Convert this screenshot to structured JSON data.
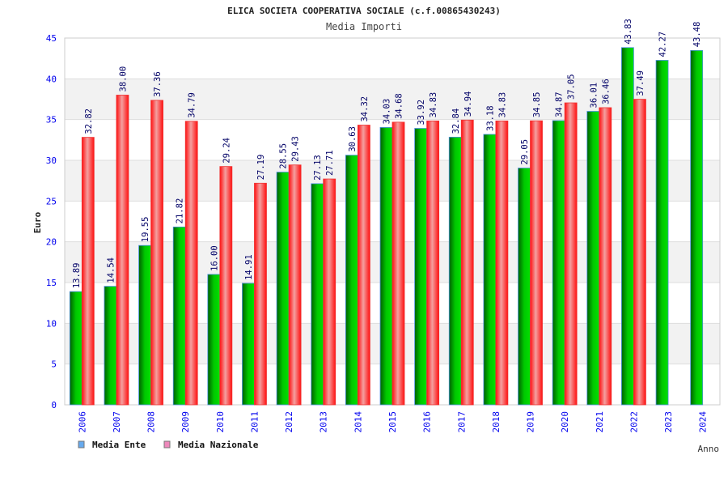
{
  "chart_data": {
    "type": "bar",
    "title": "ELICA SOCIETA COOPERATIVA SOCIALE (c.f.00865430243)",
    "subtitle": "Media Importi",
    "xlabel": "Anno",
    "ylabel": "Euro",
    "ylim": [
      0,
      45
    ],
    "yticks": [
      0,
      5,
      10,
      15,
      20,
      25,
      30,
      35,
      40,
      45
    ],
    "grid": true,
    "legend_position": "bottom-left",
    "categories": [
      "2006",
      "2007",
      "2008",
      "2009",
      "2010",
      "2011",
      "2012",
      "2013",
      "2014",
      "2015",
      "2016",
      "2017",
      "2018",
      "2019",
      "2020",
      "2021",
      "2022",
      "2023",
      "2024"
    ],
    "series": [
      {
        "name": "Media Ente",
        "color": "#00a000",
        "legend_color": "#66aaee",
        "values": [
          13.89,
          14.54,
          19.55,
          21.82,
          16.0,
          14.91,
          28.55,
          27.13,
          30.63,
          34.03,
          33.92,
          32.84,
          33.18,
          29.05,
          34.87,
          36.01,
          43.83,
          42.27,
          43.48
        ]
      },
      {
        "name": "Media Nazionale",
        "color": "#ff2020",
        "legend_color": "#ee88bb",
        "values": [
          32.82,
          38.0,
          37.36,
          34.79,
          29.24,
          27.19,
          29.43,
          27.71,
          34.32,
          34.68,
          34.83,
          34.94,
          34.83,
          34.85,
          37.05,
          36.46,
          37.49,
          null,
          null
        ]
      }
    ]
  }
}
